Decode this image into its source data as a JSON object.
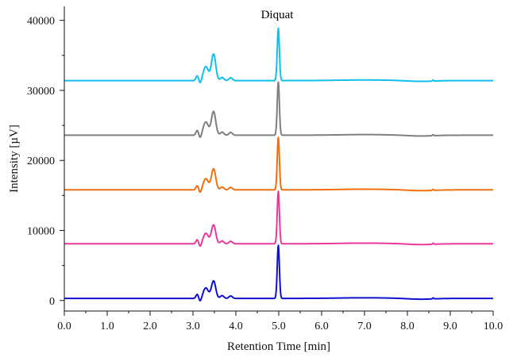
{
  "chart_data": {
    "type": "line",
    "xlabel": "Retention Time [min]",
    "ylabel": "Intensity [µV]",
    "xlim": [
      0,
      10
    ],
    "ylim": [
      -1500,
      42000
    ],
    "x_ticks": [
      "0.0",
      "1.0",
      "2.0",
      "3.0",
      "4.0",
      "5.0",
      "6.0",
      "7.0",
      "8.0",
      "9.0",
      "10.0"
    ],
    "y_ticks": [
      "0",
      "10000",
      "20000",
      "30000",
      "40000"
    ],
    "grid": false,
    "legend": "none",
    "annotations": [
      {
        "text": "Diquat",
        "x": 5.0,
        "y": 40000
      }
    ],
    "series": [
      {
        "color": "#1010d0",
        "baseline": 300,
        "peaks": [
          {
            "x": 3.1,
            "h": 600,
            "w": 0.03
          },
          {
            "x": 3.3,
            "h": 1500,
            "w": 0.06
          },
          {
            "x": 3.48,
            "h": 2500,
            "w": 0.05
          },
          {
            "x": 3.68,
            "h": 400,
            "w": 0.04
          },
          {
            "x": 3.88,
            "h": 350,
            "w": 0.04
          },
          {
            "x": 4.99,
            "h": 7600,
            "w": 0.025
          }
        ]
      },
      {
        "color": "#e8389a",
        "baseline": 8100,
        "peaks": [
          {
            "x": 3.1,
            "h": 600,
            "w": 0.03
          },
          {
            "x": 3.3,
            "h": 1500,
            "w": 0.06
          },
          {
            "x": 3.48,
            "h": 2700,
            "w": 0.05
          },
          {
            "x": 3.68,
            "h": 400,
            "w": 0.04
          },
          {
            "x": 3.88,
            "h": 350,
            "w": 0.04
          },
          {
            "x": 4.99,
            "h": 7500,
            "w": 0.025
          }
        ]
      },
      {
        "color": "#f07010",
        "baseline": 15800,
        "peaks": [
          {
            "x": 3.1,
            "h": 600,
            "w": 0.03
          },
          {
            "x": 3.3,
            "h": 1600,
            "w": 0.06
          },
          {
            "x": 3.48,
            "h": 3000,
            "w": 0.05
          },
          {
            "x": 3.68,
            "h": 400,
            "w": 0.04
          },
          {
            "x": 3.88,
            "h": 350,
            "w": 0.04
          },
          {
            "x": 4.99,
            "h": 7500,
            "w": 0.025
          }
        ]
      },
      {
        "color": "#7f7f7f",
        "baseline": 23600,
        "peaks": [
          {
            "x": 3.1,
            "h": 700,
            "w": 0.03
          },
          {
            "x": 3.3,
            "h": 1900,
            "w": 0.06
          },
          {
            "x": 3.48,
            "h": 3400,
            "w": 0.05
          },
          {
            "x": 3.68,
            "h": 450,
            "w": 0.04
          },
          {
            "x": 3.88,
            "h": 400,
            "w": 0.04
          },
          {
            "x": 4.99,
            "h": 7600,
            "w": 0.025
          }
        ]
      },
      {
        "color": "#10c0ec",
        "baseline": 31400,
        "peaks": [
          {
            "x": 3.1,
            "h": 700,
            "w": 0.03
          },
          {
            "x": 3.3,
            "h": 2000,
            "w": 0.06
          },
          {
            "x": 3.48,
            "h": 3800,
            "w": 0.05
          },
          {
            "x": 3.68,
            "h": 450,
            "w": 0.04
          },
          {
            "x": 3.88,
            "h": 400,
            "w": 0.04
          },
          {
            "x": 4.99,
            "h": 7500,
            "w": 0.025
          }
        ]
      }
    ]
  }
}
